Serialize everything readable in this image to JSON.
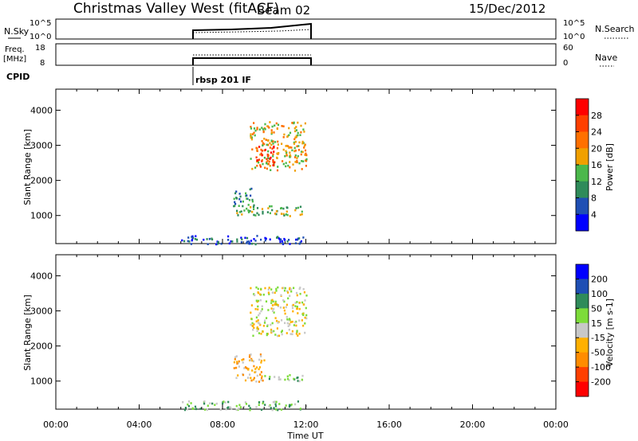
{
  "header": {
    "title": "Christmas Valley West (fitACF)",
    "beam": "Beam 02",
    "date": "15/Dec/2012"
  },
  "top_panels": {
    "nsky_label": "N.Sky",
    "nsearch_label": "N.Search",
    "freq_label_1": "Freq.",
    "freq_label_2": "[MHz]",
    "nave_label": "Nave",
    "cpid_label": "CPID",
    "cpid_value": "rbsp 201 IF",
    "noise_ticks": [
      "10^5",
      "10^0"
    ],
    "freq_ticks": [
      "18",
      "8"
    ],
    "nave_ticks": [
      "60",
      "0"
    ]
  },
  "colors": {
    "power": [
      "#0000ff",
      "#1f4fb4",
      "#2f8b5a",
      "#4bb84b",
      "#f0a000",
      "#ff7000",
      "#ff4000",
      "#ff0000"
    ],
    "velocity": [
      "#ff0000",
      "#ff4000",
      "#ff8c00",
      "#ffb000",
      "#c8c8c8",
      "#7ddc3a",
      "#2f8b5a",
      "#1f4fb4",
      "#0000ff"
    ]
  },
  "chart_data": [
    {
      "type": "heatmap",
      "name": "power",
      "ylabel": "Slant Range [km]",
      "y_ticks": [
        1000,
        2000,
        3000,
        4000
      ],
      "ylim": [
        200,
        4600
      ],
      "xlim": [
        0,
        24
      ],
      "colorbar_label": "Power [dB]",
      "colorbar_ticks": [
        "4",
        "8",
        "12",
        "16",
        "20",
        "24",
        "28"
      ],
      "regions": [
        {
          "t0": 9.3,
          "t1": 12.0,
          "r0": 2300,
          "r1": 3700,
          "level": 4
        },
        {
          "t0": 9.5,
          "t1": 10.5,
          "r0": 2400,
          "r1": 3000,
          "level": 6
        },
        {
          "t0": 8.5,
          "t1": 12.0,
          "r0": 1000,
          "r1": 1300,
          "level": 3
        },
        {
          "t0": 8.5,
          "t1": 9.5,
          "r0": 1300,
          "r1": 1800,
          "level": 2
        },
        {
          "t0": 6.0,
          "t1": 12.0,
          "r0": 200,
          "r1": 450,
          "level": 1
        }
      ]
    },
    {
      "type": "heatmap",
      "name": "velocity",
      "xlabel": "Time UT",
      "ylabel": "Slant Range [km]",
      "x_ticks": [
        "00:00",
        "04:00",
        "08:00",
        "12:00",
        "16:00",
        "20:00",
        "00:00"
      ],
      "y_ticks": [
        1000,
        2000,
        3000,
        4000
      ],
      "ylim": [
        200,
        4600
      ],
      "xlim": [
        0,
        24
      ],
      "colorbar_label": "Velocity [m s-1]",
      "colorbar_ticks": [
        "-200",
        "-100",
        "-50",
        "-15",
        "15",
        "50",
        "100",
        "200"
      ],
      "regions": [
        {
          "t0": 9.3,
          "t1": 12.0,
          "r0": 2300,
          "r1": 3700,
          "level": 4
        },
        {
          "t0": 8.5,
          "t1": 10.0,
          "r0": 1000,
          "r1": 1800,
          "level": 3
        },
        {
          "t0": 10.0,
          "t1": 12.0,
          "r0": 1000,
          "r1": 1200,
          "level": 5
        },
        {
          "t0": 6.0,
          "t1": 12.0,
          "r0": 200,
          "r1": 450,
          "level": 5
        }
      ]
    }
  ]
}
